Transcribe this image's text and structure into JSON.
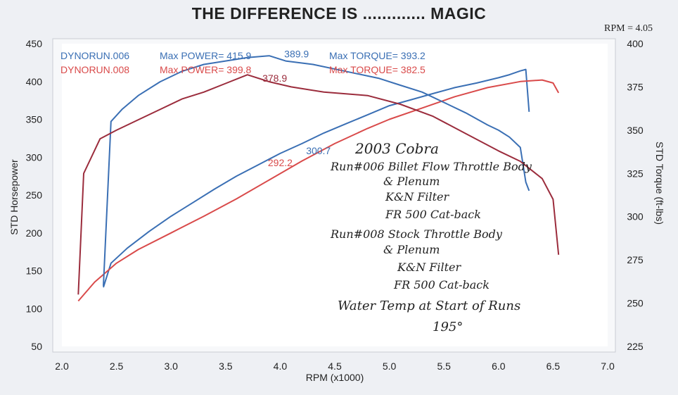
{
  "chart_data": {
    "type": "line",
    "title": "THE DIFFERENCE IS ............. MAGIC",
    "rpm_note": "RPM = 4.05",
    "xlabel": "RPM (x1000)",
    "ylabel_left": "STD Horsepower",
    "ylabel_right": "STD Torque (ft-lbs)",
    "xlim": [
      2.0,
      7.0
    ],
    "ylim_left": [
      50,
      450
    ],
    "ylim_right": [
      225,
      400
    ],
    "x_ticks": [
      "2.0",
      "2.5",
      "3.0",
      "3.5",
      "4.0",
      "4.5",
      "5.0",
      "5.5",
      "6.0",
      "6.5",
      "7.0"
    ],
    "y_left_ticks": [
      "50",
      "100",
      "150",
      "200",
      "250",
      "300",
      "350",
      "400",
      "450"
    ],
    "y_right_ticks": [
      "225",
      "250",
      "275",
      "300",
      "325",
      "350",
      "375",
      "400"
    ],
    "legend": [
      {
        "run": "DYNORUN.006",
        "power": "Max POWER= 415.9",
        "torque": "Max TORQUE= 393.2",
        "color": "#3a6fb4"
      },
      {
        "run": "DYNORUN.008",
        "power": "Max POWER= 399.8",
        "torque": "Max TORQUE= 382.5",
        "color": "#d94a4a"
      }
    ],
    "series": [
      {
        "name": "DYNORUN.006 Power",
        "axis": "left",
        "color": "#3a6fb4",
        "x": [
          2.38,
          2.45,
          2.6,
          2.8,
          3.0,
          3.2,
          3.4,
          3.6,
          3.8,
          4.0,
          4.2,
          4.4,
          4.6,
          4.8,
          5.0,
          5.2,
          5.4,
          5.6,
          5.8,
          6.0,
          6.1,
          6.2,
          6.25,
          6.28
        ],
        "y": [
          128,
          160,
          180,
          202,
          222,
          240,
          258,
          275,
          290,
          305,
          318,
          332,
          344,
          356,
          368,
          376,
          384,
          392,
          398,
          405,
          409,
          414,
          416,
          360
        ]
      },
      {
        "name": "DYNORUN.008 Power",
        "axis": "left",
        "color": "#d94a4a",
        "x": [
          2.15,
          2.3,
          2.5,
          2.7,
          3.0,
          3.3,
          3.6,
          3.9,
          4.2,
          4.5,
          4.8,
          5.0,
          5.3,
          5.6,
          5.9,
          6.2,
          6.4,
          6.5,
          6.55
        ],
        "y": [
          110,
          135,
          160,
          178,
          200,
          222,
          245,
          270,
          295,
          318,
          338,
          350,
          365,
          380,
          392,
          400,
          402,
          398,
          385
        ]
      },
      {
        "name": "DYNORUN.006 Torque",
        "axis": "right",
        "color": "#3a6fb4",
        "x": [
          2.38,
          2.45,
          2.55,
          2.7,
          2.9,
          3.1,
          3.3,
          3.5,
          3.7,
          3.9,
          4.05,
          4.3,
          4.6,
          4.9,
          5.1,
          5.3,
          5.5,
          5.7,
          5.9,
          6.0,
          6.1,
          6.2,
          6.25,
          6.28
        ],
        "y": [
          260,
          355,
          362,
          370,
          378,
          384,
          388,
          390,
          392,
          393,
          390,
          388,
          384,
          380,
          376,
          372,
          366,
          360,
          353,
          350,
          346,
          340,
          320,
          315
        ]
      },
      {
        "name": "DYNORUN.008 Torque",
        "axis": "right",
        "color": "#9b2c3c",
        "x": [
          2.15,
          2.2,
          2.35,
          2.5,
          2.7,
          2.9,
          3.1,
          3.3,
          3.5,
          3.7,
          3.9,
          4.1,
          4.4,
          4.8,
          5.1,
          5.4,
          5.7,
          6.0,
          6.2,
          6.4,
          6.5,
          6.55
        ],
        "y": [
          255,
          325,
          345,
          350,
          356,
          362,
          368,
          372,
          377,
          382,
          378,
          375,
          372,
          370,
          365,
          358,
          348,
          338,
          332,
          322,
          310,
          278
        ]
      }
    ],
    "data_labels": [
      {
        "text": "389.9",
        "x": 4.15,
        "y": 392,
        "axis": "right",
        "color": "#3a6fb4"
      },
      {
        "text": "378.9",
        "x": 3.95,
        "y": 378,
        "axis": "right",
        "color": "#9b2c3c"
      },
      {
        "text": "300.7",
        "x": 4.35,
        "y": 304,
        "axis": "left",
        "color": "#3a6fb4"
      },
      {
        "text": "292.2",
        "x": 4.0,
        "y": 288,
        "axis": "left",
        "color": "#d94a4a"
      }
    ],
    "annotations": [
      "2003 Cobra",
      "Run#006  Billet Flow Throttle Body",
      "& Plenum",
      "K&N Filter",
      "FR 500 Cat-back",
      "Run#008  Stock Throttle Body",
      "& Plenum",
      "K&N Filter",
      "FR 500 Cat-back",
      "Water Temp at Start of Runs",
      "195°"
    ]
  }
}
